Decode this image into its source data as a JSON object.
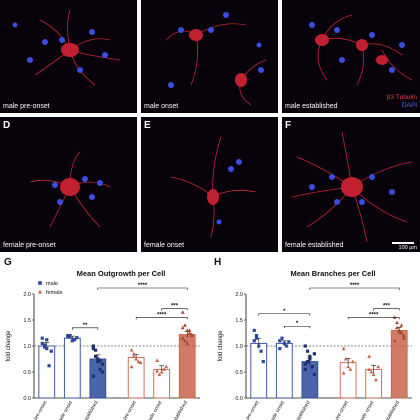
{
  "panels": [
    {
      "letter": "",
      "label": "male pre-onset"
    },
    {
      "letter": "",
      "label": "male onset"
    },
    {
      "letter": "",
      "label": "male established"
    },
    {
      "letter": "D",
      "label": "female pre-onset"
    },
    {
      "letter": "E",
      "label": "female onset"
    },
    {
      "letter": "F",
      "label": "female established"
    }
  ],
  "stain_legend": {
    "red": "β3 Tubulin",
    "blue": "DAPI"
  },
  "scale_bar": "100 µm",
  "colors": {
    "male": "#2d4a9a",
    "female": "#c8644a",
    "red": "#e8394a",
    "blue": "#4a6cff"
  },
  "chart_data": [
    {
      "panel_letter": "G",
      "type": "bar",
      "title": "Mean Outgrowth per Cell",
      "ylabel": "fold change",
      "ylim": [
        0,
        2.0
      ],
      "yticks": [
        0.0,
        0.5,
        1.0,
        1.5,
        2.0
      ],
      "legend": [
        {
          "name": "male",
          "marker": "square"
        },
        {
          "name": "female",
          "marker": "triangle"
        }
      ],
      "categories": [
        "male pre-onset",
        "male onset",
        "male established",
        "female pre-onset",
        "female onset",
        "female established"
      ],
      "values": [
        1.0,
        1.15,
        0.75,
        0.78,
        0.55,
        1.22
      ],
      "errors": [
        0.07,
        0.04,
        0.08,
        0.06,
        0.07,
        0.06
      ],
      "points": [
        [
          1.15,
          1.02,
          0.95,
          0.62,
          0.9,
          1.05,
          0.98,
          1.12
        ],
        [
          1.18,
          1.2,
          1.1,
          1.12,
          1.16,
          1.2,
          1.17
        ],
        [
          1.0,
          0.92,
          0.75,
          0.55,
          0.5,
          0.42,
          0.8,
          0.7,
          0.72,
          0.65,
          0.95
        ],
        [
          0.92,
          0.85,
          0.75,
          0.7,
          0.68,
          0.6,
          0.8
        ],
        [
          0.72,
          0.45,
          0.5,
          0.55,
          0.6,
          0.52
        ],
        [
          1.65,
          1.4,
          1.3,
          1.25,
          1.2,
          1.15,
          1.1,
          1.05,
          1.3,
          1.22,
          1.35
        ]
      ],
      "significance": [
        {
          "from": 1,
          "to": 2,
          "label": "**"
        },
        {
          "from": 2,
          "to": 5,
          "label": "****"
        },
        {
          "from": 4,
          "to": 5,
          "label": "***"
        },
        {
          "from": 3,
          "to": 5,
          "label": "****"
        }
      ]
    },
    {
      "panel_letter": "H",
      "type": "bar",
      "title": "Mean Branches per Cell",
      "ylabel": "fold change",
      "ylim": [
        0,
        2.0
      ],
      "yticks": [
        0.0,
        0.5,
        1.0,
        1.5,
        2.0
      ],
      "categories": [
        "male pre-onset",
        "male onset",
        "male established",
        "female pre-onset",
        "female onset",
        "female established"
      ],
      "values": [
        1.05,
        1.05,
        0.7,
        0.68,
        0.55,
        1.3
      ],
      "errors": [
        0.1,
        0.05,
        0.07,
        0.08,
        0.08,
        0.06
      ],
      "points": [
        [
          1.3,
          1.2,
          1.0,
          0.9,
          0.7,
          1.1,
          1.15
        ],
        [
          1.1,
          1.15,
          1.05,
          1.0,
          1.08,
          0.95
        ],
        [
          1.0,
          0.9,
          0.75,
          0.6,
          0.45,
          0.55,
          0.7,
          0.8,
          0.6,
          0.85,
          0.65
        ],
        [
          0.95,
          0.75,
          0.6,
          0.55,
          0.7,
          0.48,
          0.75
        ],
        [
          0.8,
          0.5,
          0.45,
          0.35,
          0.6,
          0.55
        ],
        [
          1.55,
          1.45,
          1.3,
          1.25,
          1.2,
          1.1,
          1.35,
          1.28,
          1.4,
          1.15
        ]
      ],
      "significance": [
        {
          "from": 0,
          "to": 2,
          "label": "*"
        },
        {
          "from": 1,
          "to": 2,
          "label": "*"
        },
        {
          "from": 2,
          "to": 5,
          "label": "****"
        },
        {
          "from": 4,
          "to": 5,
          "label": "***"
        },
        {
          "from": 3,
          "to": 5,
          "label": "****"
        }
      ]
    }
  ]
}
